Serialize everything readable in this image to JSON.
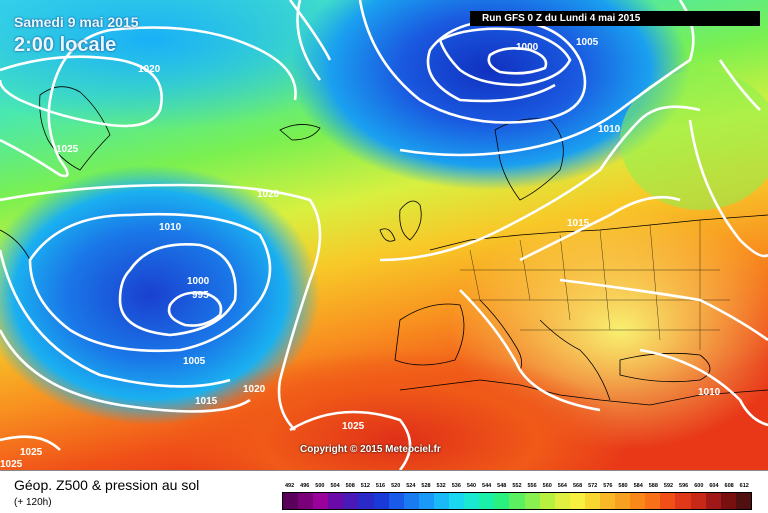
{
  "header": {
    "date": "Samedi 9 mai 2015",
    "time": "2:00 locale",
    "run": "Run GFS 0 Z du Lundi 4 mai 2015"
  },
  "copyright": "Copyright © 2015 Meteociel.fr",
  "legend": {
    "title": "Géop. Z500 & pression au sol",
    "subtitle": "(+ 120h)",
    "values": [
      "492",
      "496",
      "500",
      "504",
      "508",
      "512",
      "516",
      "520",
      "524",
      "528",
      "532",
      "536",
      "540",
      "544",
      "548",
      "552",
      "556",
      "560",
      "564",
      "568",
      "572",
      "576",
      "580",
      "584",
      "588",
      "592",
      "596",
      "600",
      "604",
      "608",
      "612"
    ],
    "colors": [
      "#5a005a",
      "#7a007a",
      "#9a009a",
      "#6a0aa8",
      "#4a1ab8",
      "#2a2ac8",
      "#1a3ad8",
      "#1a5ae8",
      "#1a7af0",
      "#1a9af8",
      "#1abaf8",
      "#1ad8f0",
      "#1ae8d0",
      "#1af0a8",
      "#2af080",
      "#5af060",
      "#8af050",
      "#b8f040",
      "#e0f040",
      "#f8f040",
      "#f8d830",
      "#f8b828",
      "#f8a020",
      "#f88818",
      "#f87018",
      "#f05018",
      "#e03818",
      "#c82818",
      "#a01818",
      "#781010",
      "#501010"
    ]
  },
  "isobars": [
    {
      "label": "1020"
    },
    {
      "label": "1025"
    },
    {
      "label": "1020"
    },
    {
      "label": "1010"
    },
    {
      "label": "1000"
    },
    {
      "label": "995"
    },
    {
      "label": "1005"
    },
    {
      "label": "1015"
    },
    {
      "label": "1020"
    },
    {
      "label": "1025"
    },
    {
      "label": "1025"
    },
    {
      "label": "1025"
    },
    {
      "label": "1000"
    },
    {
      "label": "1005"
    },
    {
      "label": "1010"
    },
    {
      "label": "1015"
    },
    {
      "label": "1010"
    }
  ]
}
